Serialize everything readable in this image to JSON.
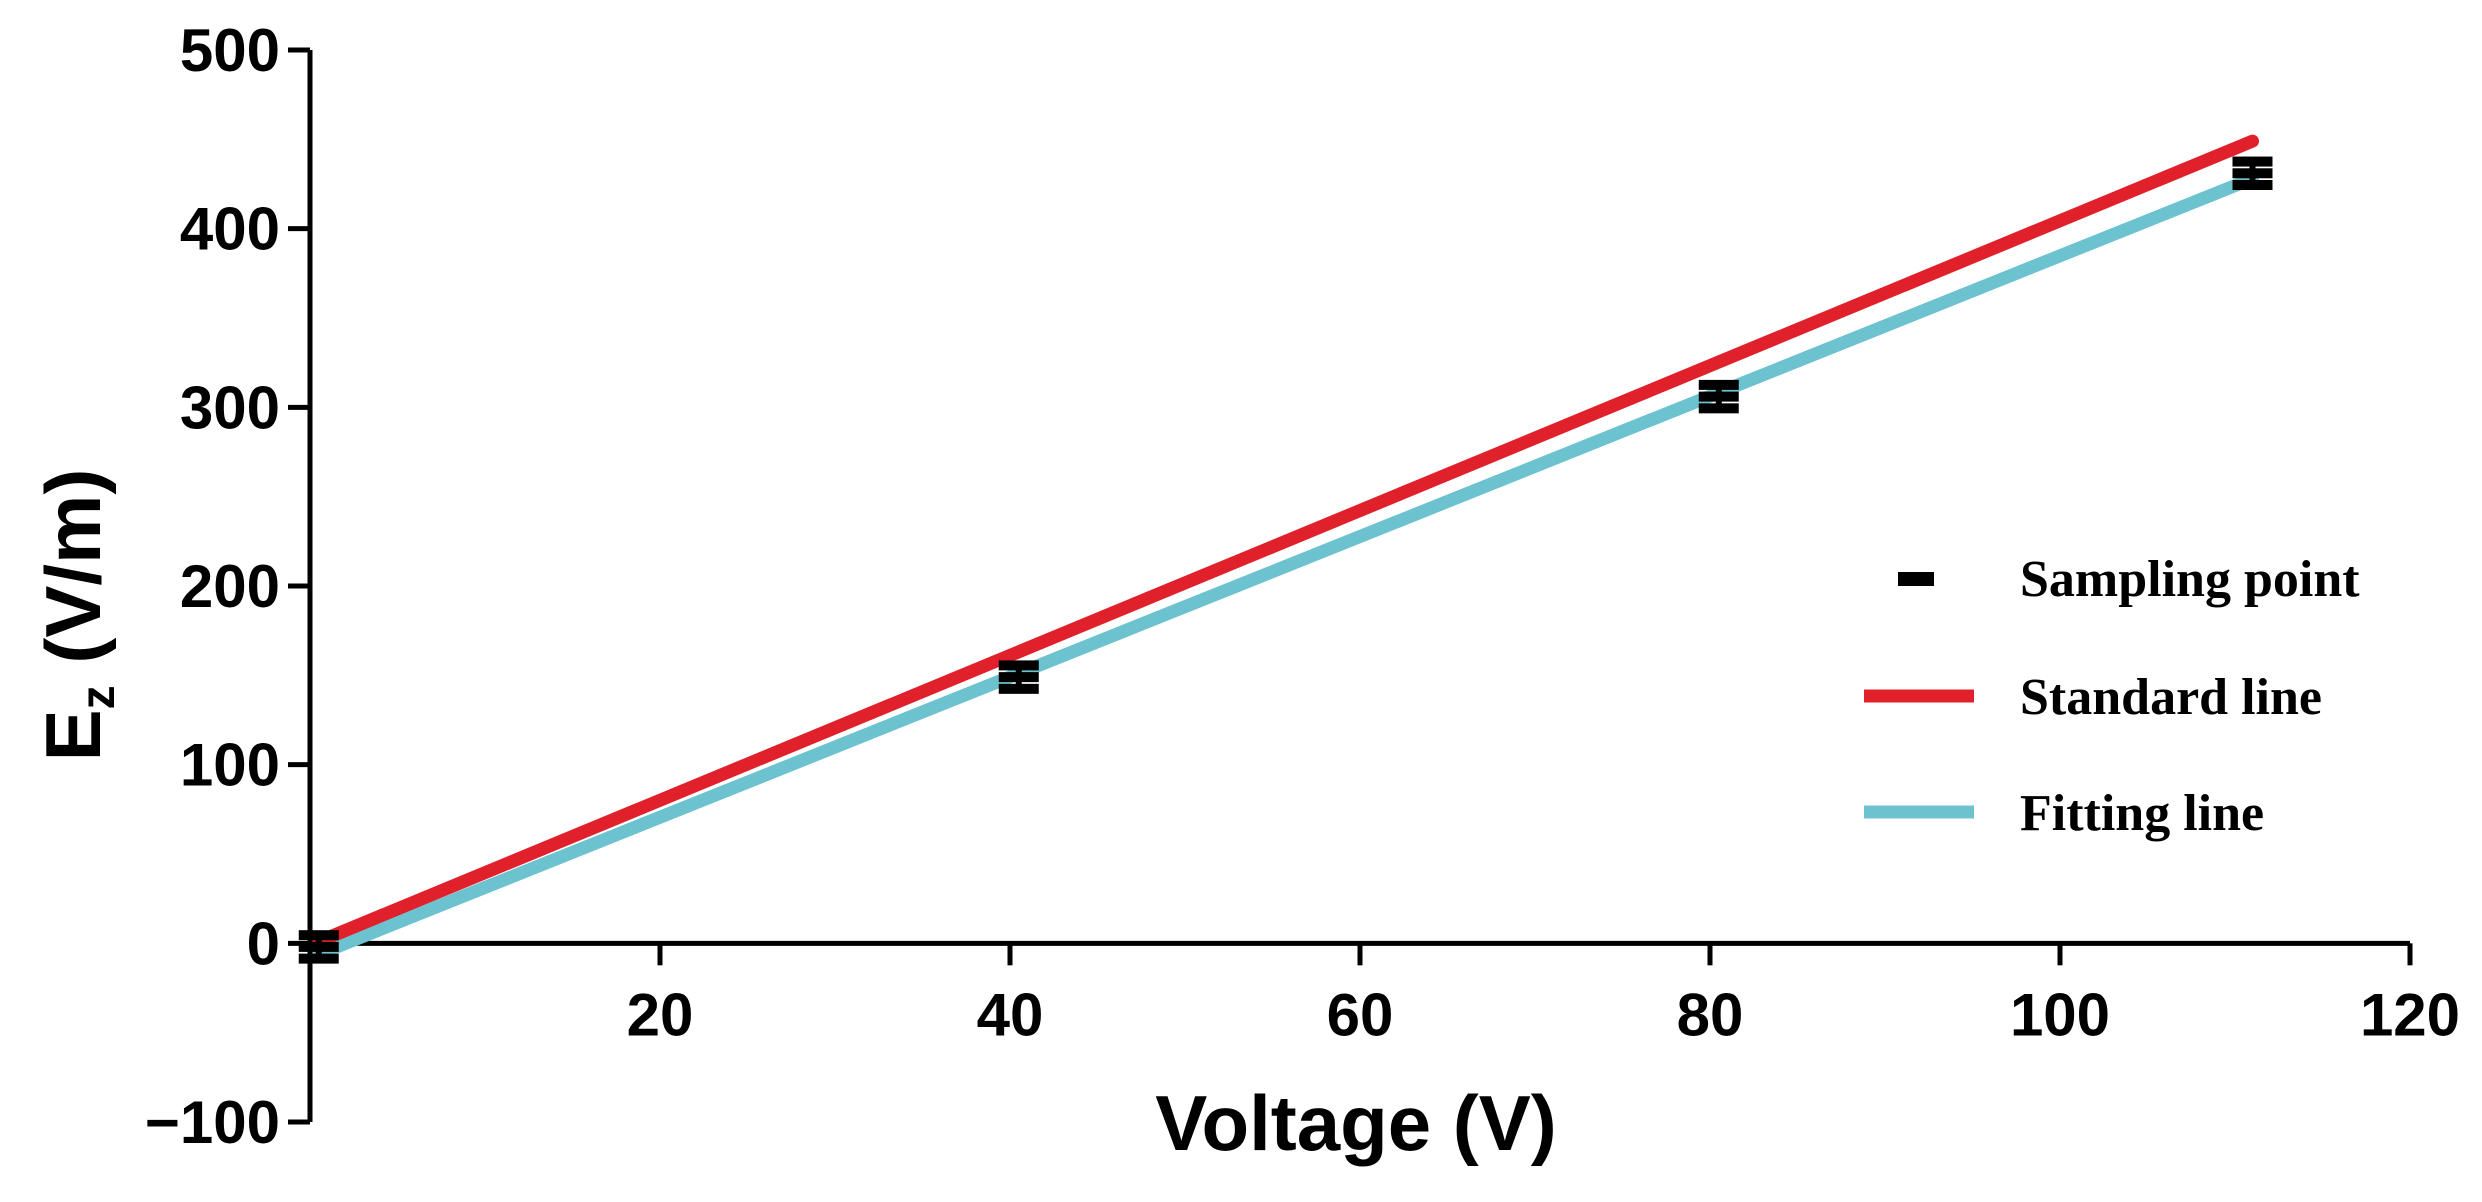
{
  "chart_data": {
    "type": "line",
    "title": "",
    "xlabel": "Voltage (V)",
    "ylabel_main": "E",
    "ylabel_sub": "z",
    "ylabel_unit": " (V/m)",
    "xlim": [
      0,
      120
    ],
    "ylim": [
      -100,
      500
    ],
    "xticks": [
      20,
      40,
      60,
      80,
      100,
      120
    ],
    "yticks": [
      -100,
      0,
      100,
      200,
      300,
      400,
      500
    ],
    "xtick_labels": [
      "20",
      "40",
      "60",
      "80",
      "100",
      "120"
    ],
    "ytick_labels": [
      "−100",
      "0",
      "100",
      "200",
      "300",
      "400",
      "500"
    ],
    "grid": false,
    "legend_position": "right",
    "series": [
      {
        "name": "Sampling point",
        "kind": "scatter-errorbar",
        "color": "#000000",
        "x": [
          0.5,
          40.5,
          80.5,
          111
        ],
        "y": [
          -2,
          149,
          306,
          431
        ],
        "err": [
          6,
          6,
          6,
          6
        ]
      },
      {
        "name": "Standard line",
        "kind": "line",
        "color": "#e0202a",
        "x": [
          0.5,
          111
        ],
        "y": [
          1,
          449
        ]
      },
      {
        "name": "Fitting line",
        "kind": "line",
        "color": "#6cc3cf",
        "x": [
          0.5,
          111
        ],
        "y": [
          -6,
          428
        ]
      }
    ],
    "legend": [
      "Sampling point",
      "Standard line",
      "Fitting line"
    ]
  }
}
